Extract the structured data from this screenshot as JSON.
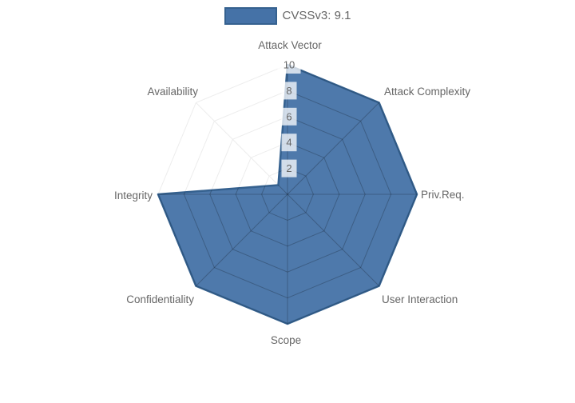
{
  "legend": {
    "label": "CVSSv3: 9.1"
  },
  "chart_data": {
    "type": "radar",
    "axes": [
      "Attack Vector",
      "Attack Complexity",
      "Priv.Req.",
      "User Interaction",
      "Scope",
      "Confidentiality",
      "Integrity",
      "Availability"
    ],
    "series": [
      {
        "name": "CVSSv3: 9.1",
        "values": [
          10,
          10,
          10,
          10,
          10,
          10,
          10,
          1
        ]
      }
    ],
    "ticks": [
      2,
      4,
      6,
      8,
      10
    ],
    "rmax": 10,
    "grid": true,
    "legend_position": "top",
    "colors": {
      "fill": "#4572a7",
      "border": "#35618f",
      "label": "#666666",
      "tick_backdrop": "rgba(255,255,255,0.75)",
      "grid_light": "#ededed",
      "grid_on_fill": "rgba(0,0,0,0.22)"
    }
  }
}
